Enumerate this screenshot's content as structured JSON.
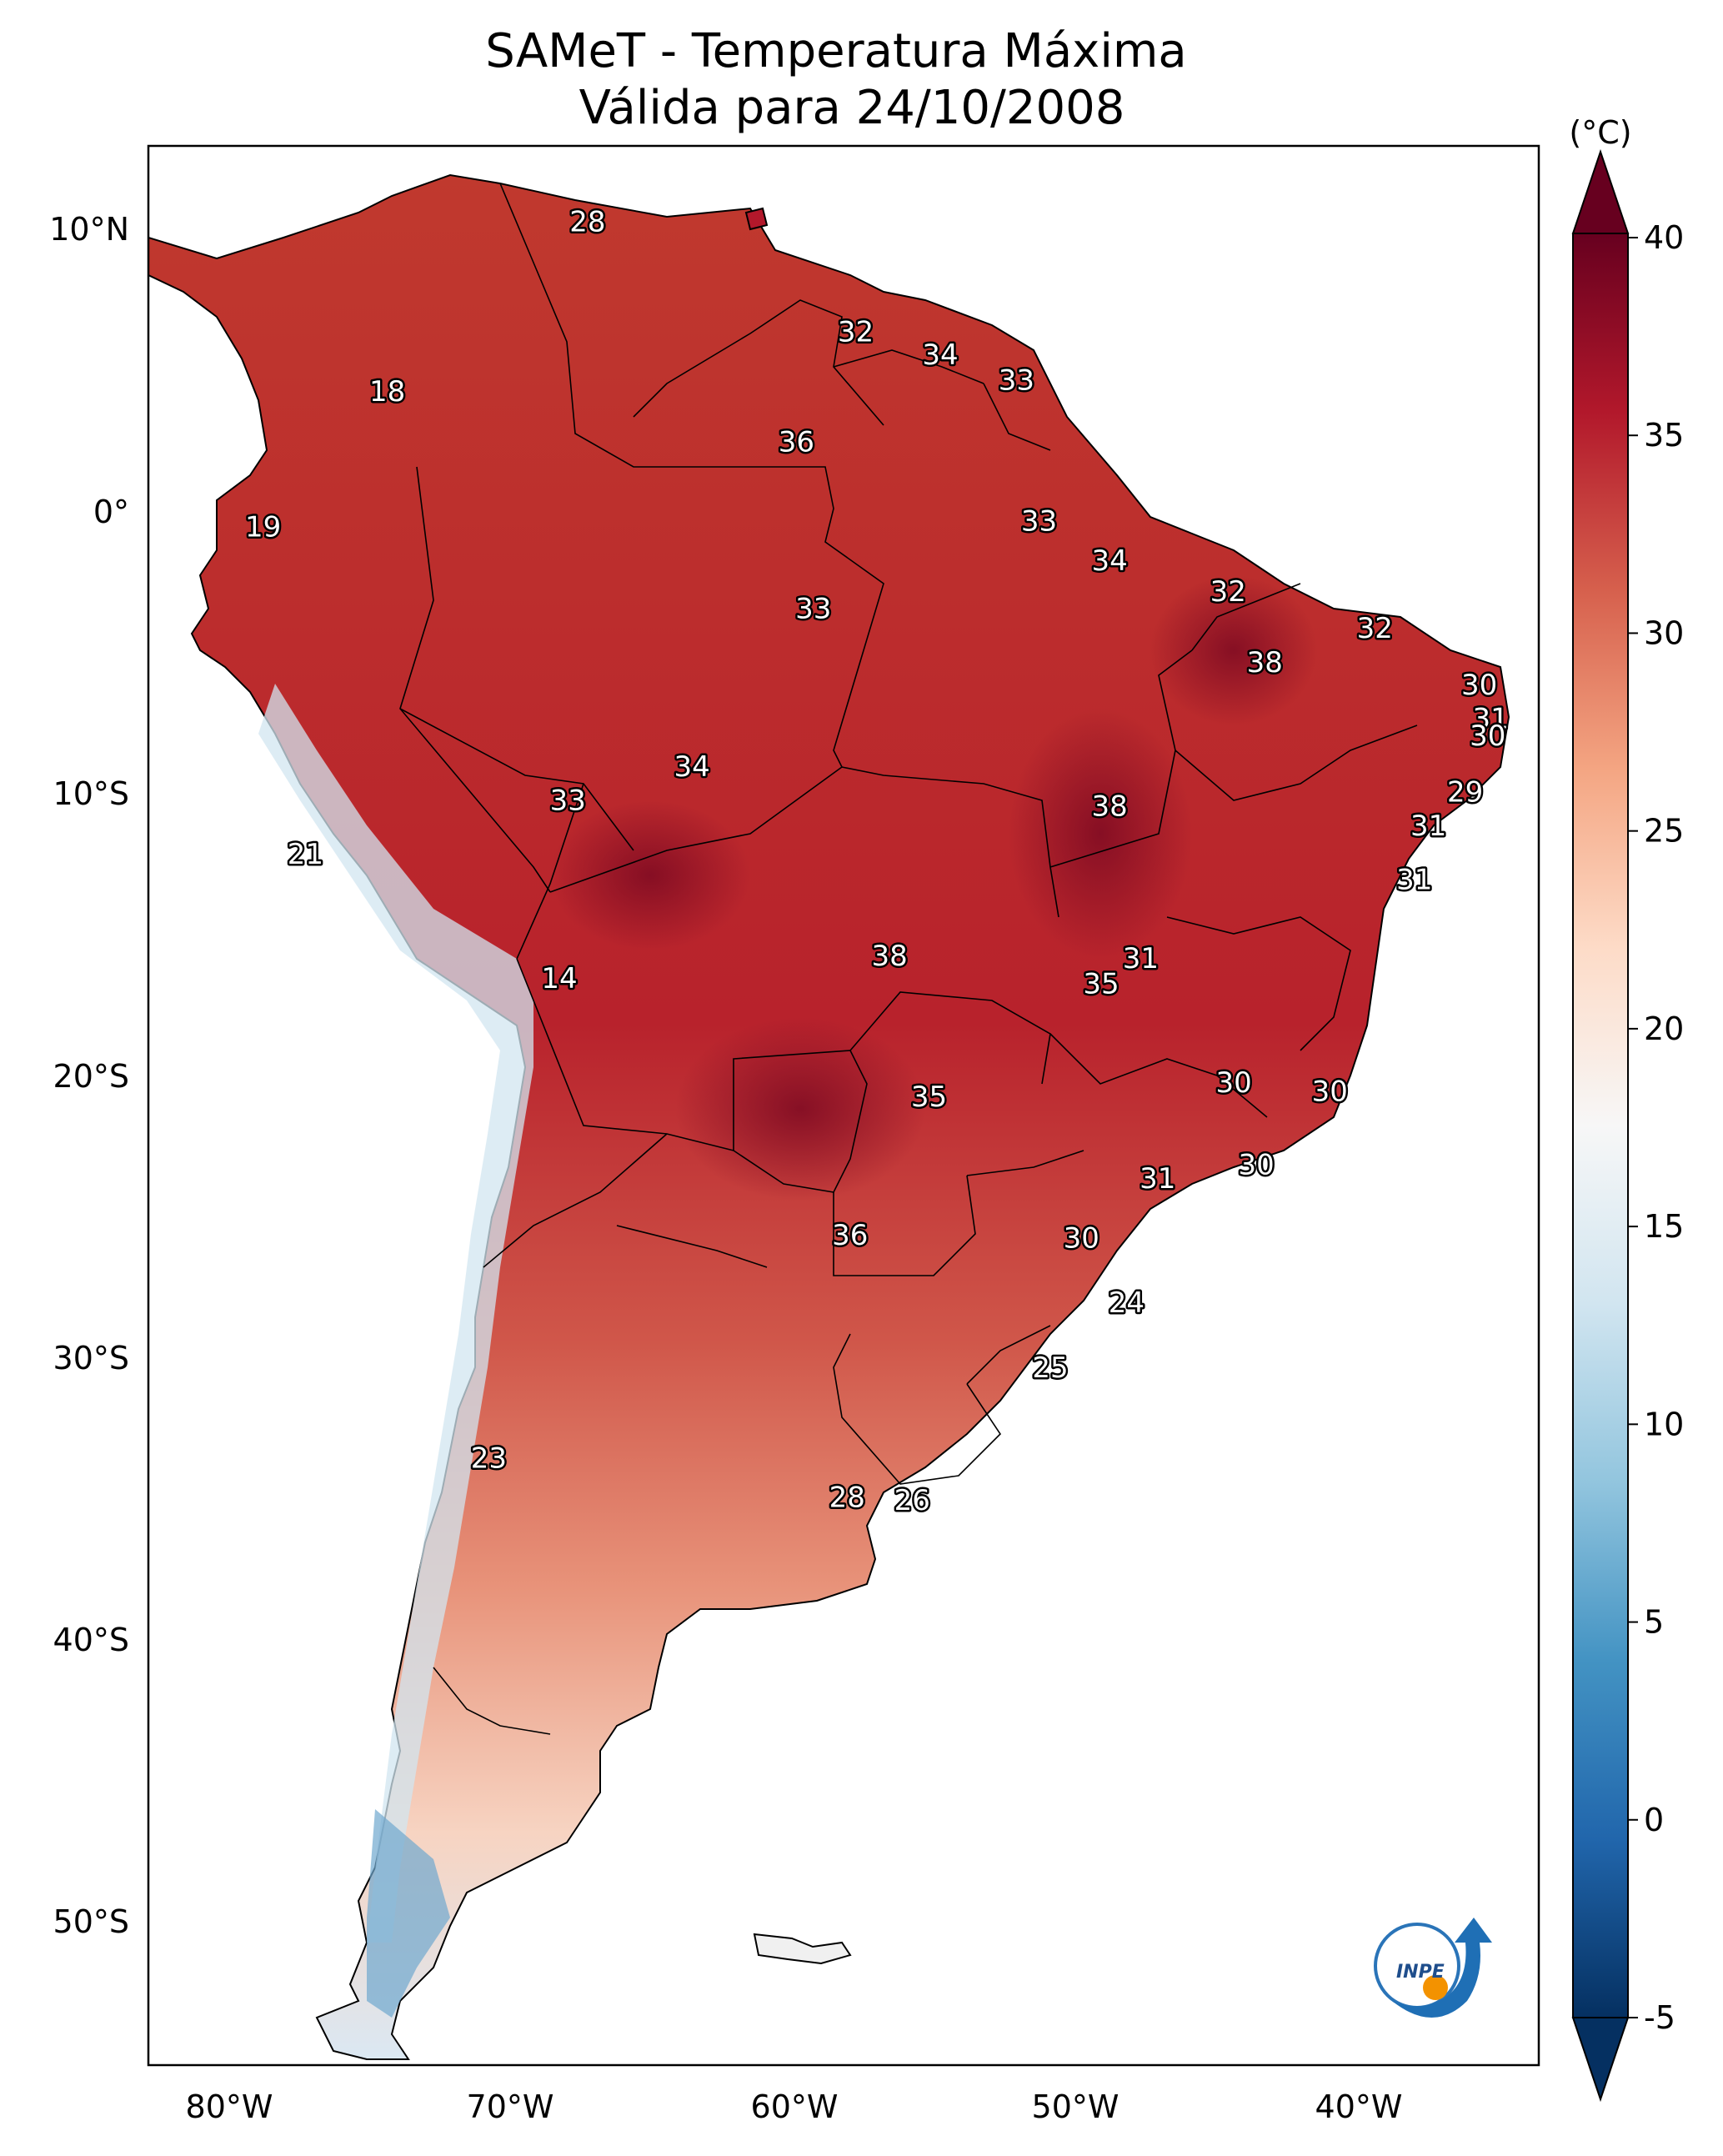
{
  "title": {
    "line1": "SAMeT - Temperatura Máxima",
    "line2": "Válida para 24/10/2008"
  },
  "colorbar": {
    "unit": "(°C)",
    "min": -5,
    "max": 40,
    "ticks": [
      "40",
      "35",
      "30",
      "25",
      "20",
      "15",
      "10",
      "5",
      "0",
      "-5"
    ]
  },
  "axes": {
    "lon_labels": [
      "80°W",
      "70°W",
      "60°W",
      "50°W",
      "40°W"
    ],
    "lat_labels": [
      "10°N",
      "0°",
      "10°S",
      "20°S",
      "30°S",
      "40°S",
      "50°S"
    ]
  },
  "logo": {
    "text": "INPE"
  },
  "temperature_labels": [
    {
      "value": "28",
      "lon": -67.3,
      "lat": 10.6
    },
    {
      "value": "32",
      "lon": -57.8,
      "lat": 6.7
    },
    {
      "value": "34",
      "lon": -54.8,
      "lat": 5.9
    },
    {
      "value": "33",
      "lon": -52.1,
      "lat": 5.0
    },
    {
      "value": "36",
      "lon": -59.9,
      "lat": 2.8
    },
    {
      "value": "18",
      "lon": -74.4,
      "lat": 4.6
    },
    {
      "value": "19",
      "lon": -78.8,
      "lat": -0.2
    },
    {
      "value": "33",
      "lon": -51.3,
      "lat": 0.0
    },
    {
      "value": "34",
      "lon": -48.8,
      "lat": -1.4
    },
    {
      "value": "32",
      "lon": -44.6,
      "lat": -2.5
    },
    {
      "value": "33",
      "lon": -59.3,
      "lat": -3.1
    },
    {
      "value": "32",
      "lon": -39.4,
      "lat": -3.8
    },
    {
      "value": "38",
      "lon": -43.3,
      "lat": -5.0
    },
    {
      "value": "30",
      "lon": -35.7,
      "lat": -5.8
    },
    {
      "value": "31",
      "lon": -35.3,
      "lat": -7.0
    },
    {
      "value": "30",
      "lon": -35.4,
      "lat": -7.6
    },
    {
      "value": "34",
      "lon": -63.6,
      "lat": -8.7
    },
    {
      "value": "33",
      "lon": -68.0,
      "lat": -9.9
    },
    {
      "value": "38",
      "lon": -48.8,
      "lat": -10.1
    },
    {
      "value": "29",
      "lon": -36.2,
      "lat": -9.6
    },
    {
      "value": "31",
      "lon": -37.5,
      "lat": -10.8
    },
    {
      "value": "21",
      "lon": -77.3,
      "lat": -11.8
    },
    {
      "value": "31",
      "lon": -38.0,
      "lat": -12.7
    },
    {
      "value": "14",
      "lon": -68.3,
      "lat": -16.2
    },
    {
      "value": "38",
      "lon": -56.6,
      "lat": -15.4
    },
    {
      "value": "31",
      "lon": -47.7,
      "lat": -15.5
    },
    {
      "value": "35",
      "lon": -49.1,
      "lat": -16.4
    },
    {
      "value": "30",
      "lon": -44.4,
      "lat": -19.9
    },
    {
      "value": "30",
      "lon": -41.0,
      "lat": -20.2
    },
    {
      "value": "35",
      "lon": -55.2,
      "lat": -20.4
    },
    {
      "value": "31",
      "lon": -47.1,
      "lat": -23.3
    },
    {
      "value": "30",
      "lon": -43.6,
      "lat": -22.8
    },
    {
      "value": "36",
      "lon": -58.0,
      "lat": -25.3
    },
    {
      "value": "30",
      "lon": -49.8,
      "lat": -25.4
    },
    {
      "value": "24",
      "lon": -48.2,
      "lat": -27.7
    },
    {
      "value": "25",
      "lon": -50.9,
      "lat": -30.0
    },
    {
      "value": "23",
      "lon": -70.8,
      "lat": -33.2
    },
    {
      "value": "28",
      "lon": -58.1,
      "lat": -34.6
    },
    {
      "value": "26",
      "lon": -55.8,
      "lat": -34.7
    }
  ]
}
